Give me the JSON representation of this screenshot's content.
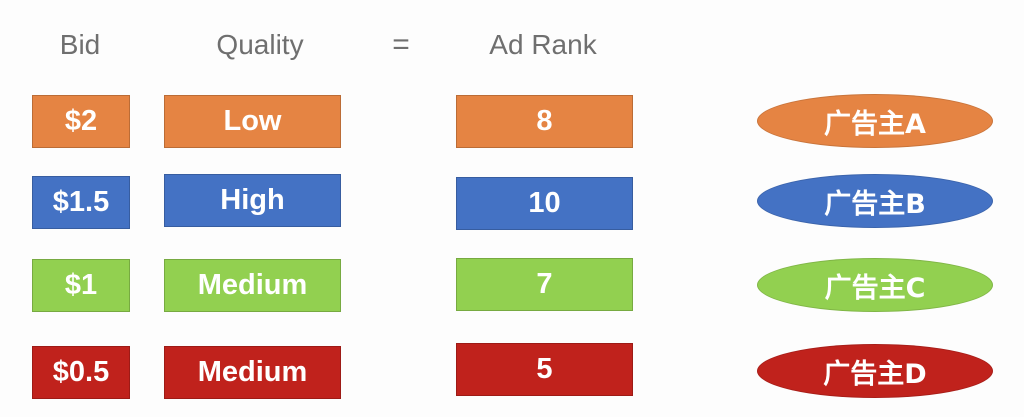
{
  "headers": {
    "bid": "Bid",
    "quality": "Quality",
    "equals": "=",
    "ad_rank": "Ad Rank"
  },
  "rows": [
    {
      "bid": "$2",
      "quality": "Low",
      "ad_rank": "8",
      "advertiser": "广告主A",
      "color": "#e58443"
    },
    {
      "bid": "$1.5",
      "quality": "High",
      "ad_rank": "10",
      "advertiser": "广告主B",
      "color": "#4472c4"
    },
    {
      "bid": "$1",
      "quality": "Medium",
      "ad_rank": "7",
      "advertiser": "广告主C",
      "color": "#92d050"
    },
    {
      "bid": "$0.5",
      "quality": "Medium",
      "ad_rank": "5",
      "advertiser": "广告主D",
      "color": "#c0221c"
    }
  ]
}
